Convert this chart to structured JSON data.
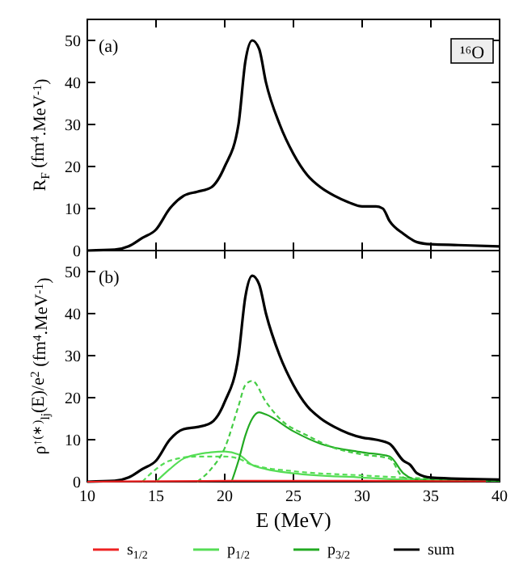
{
  "chart_data": [
    {
      "type": "line",
      "ylabel": "R$_{F}$ (fm$^{4}$.MeV$^{-1}$)",
      "annotations": [
        "(a)",
        "¹⁶O"
      ],
      "xlim": [
        10,
        40
      ],
      "xticks": [
        10,
        15,
        20,
        25,
        30,
        35,
        40
      ],
      "ylim": [
        0,
        55
      ],
      "yticks": [
        0,
        10,
        20,
        30,
        40,
        50
      ],
      "tick_labels": "y",
      "x": [
        10,
        12,
        13,
        14,
        15,
        16,
        17,
        18,
        19,
        20,
        21,
        21.5,
        22,
        22.5,
        23,
        24,
        25,
        26,
        27,
        28,
        29,
        30,
        31,
        31.5,
        32,
        33,
        34,
        35,
        37,
        40
      ],
      "series": [
        {
          "color": "#000000",
          "values": [
            0,
            0.2,
            1,
            3,
            5,
            10,
            13,
            14,
            15,
            20,
            30,
            45,
            50,
            48,
            40,
            30,
            23,
            18,
            15,
            13,
            11.5,
            10.5,
            10.5,
            10,
            7,
            4,
            2,
            1.5,
            1.3,
            1
          ]
        }
      ]
    },
    {
      "type": "line",
      "ylabel": "ρ$^{↑(∗)}$$_{lj}$(E)/e$^{2}$ (fm$^{4}$.MeV$^{-1}$)",
      "xlabel": "E (MeV)",
      "annotations": [
        "(b)"
      ],
      "xlim": [
        10,
        40
      ],
      "xticks": [
        10,
        15,
        20,
        25,
        30,
        35,
        40
      ],
      "ylim": [
        0,
        55
      ],
      "yticks": [
        0,
        10,
        20,
        30,
        40,
        50
      ],
      "legend": "bottom",
      "series": [
        {
          "name": "s$_{1/2}$",
          "color": "#ee2222",
          "x": [
            10,
            20,
            30,
            39
          ],
          "values": [
            0,
            0.2,
            0.2,
            0.1
          ]
        },
        {
          "name": "p$_{1/2}$",
          "color": "#55dd55",
          "x": [
            15,
            16,
            17,
            18,
            19,
            20,
            21,
            22,
            23,
            25,
            30,
            33,
            40
          ],
          "values": [
            0,
            3,
            5.5,
            6.5,
            7,
            7.2,
            6.5,
            4,
            3,
            2,
            1,
            0.5,
            0.2
          ]
        },
        {
          "color": "#55dd55",
          "line_style": "dashed",
          "x": [
            14,
            15,
            16,
            18,
            20,
            21,
            22,
            25,
            30,
            33,
            40
          ],
          "values": [
            0,
            3,
            5,
            6,
            6,
            5.5,
            4,
            2.5,
            1.5,
            1,
            0.3
          ]
        },
        {
          "name": "p$_{3/2}$",
          "color": "#22aa22",
          "x": [
            20.5,
            21,
            21.5,
            22,
            22.5,
            23,
            25,
            27,
            30,
            32,
            33,
            34,
            40
          ],
          "values": [
            0,
            5,
            11,
            15,
            16.5,
            16,
            12,
            9,
            7,
            6,
            2,
            0.5,
            0.2
          ]
        },
        {
          "color": "#44cc44",
          "line_style": "dashed",
          "x": [
            18,
            19,
            20,
            21,
            21.5,
            22,
            23,
            24,
            26,
            28,
            30,
            32,
            33,
            34,
            40
          ],
          "values": [
            0,
            3,
            8,
            18,
            23,
            24,
            19,
            15,
            11,
            8,
            6.5,
            5.5,
            1,
            0.5,
            0.2
          ]
        },
        {
          "name": "sum",
          "color": "#000000",
          "x": [
            10,
            12,
            13,
            14,
            15,
            16,
            17,
            18,
            19,
            20,
            21,
            21.5,
            22,
            22.5,
            23,
            24,
            25,
            26,
            27,
            28,
            29,
            30,
            31,
            32,
            33,
            33.5,
            34,
            35,
            40
          ],
          "values": [
            0,
            0.2,
            1,
            3,
            5,
            10,
            12.5,
            13,
            14,
            19,
            30,
            44,
            49,
            47,
            40,
            30,
            23,
            18,
            15,
            13,
            11.5,
            10.5,
            10,
            9,
            5,
            4,
            2,
            1,
            0.5
          ]
        }
      ]
    }
  ]
}
